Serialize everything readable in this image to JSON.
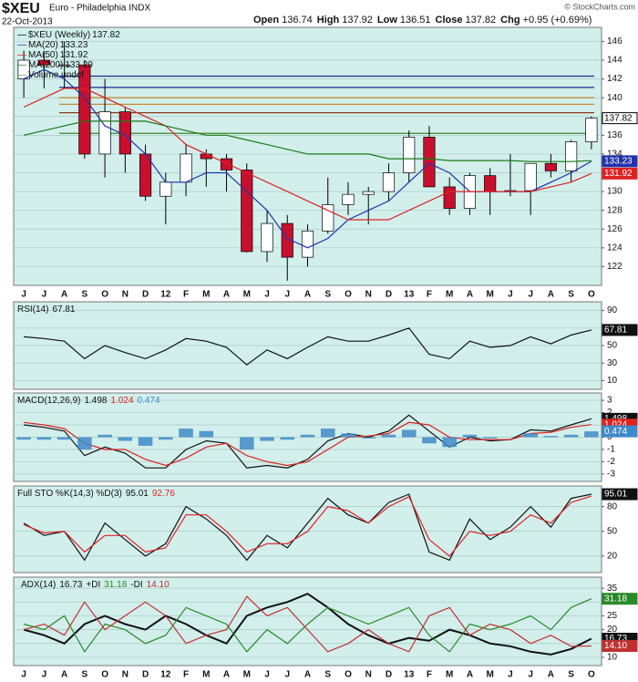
{
  "header": {
    "symbol": "$XEU",
    "name": "Euro - Philadelphia INDX",
    "date": "22-Oct-2013",
    "source": "© StockCharts.com",
    "quote": [
      {
        "label": "Open",
        "value": 136.74
      },
      {
        "label": "High",
        "value": 137.92
      },
      {
        "label": "Low",
        "value": 136.51
      },
      {
        "label": "Close",
        "value": 137.82
      },
      {
        "label": "Chg",
        "value": "+0.95 (+0.69%)"
      }
    ]
  },
  "chart_data": [
    {
      "type": "candlestick",
      "name": "$XEU (Weekly)",
      "note": "Volume undef",
      "tag": true,
      "categories": [
        "J",
        "J",
        "A",
        "S",
        "O",
        "N",
        "D",
        "12",
        "F",
        "M",
        "A",
        "M",
        "J",
        "J",
        "A",
        "S",
        "O",
        "N",
        "D",
        "13",
        "F",
        "M",
        "A",
        "M",
        "J",
        "J",
        "A",
        "S",
        "O"
      ],
      "open": [
        142,
        144,
        143.5,
        143.5,
        134,
        138.5,
        134,
        129.5,
        131,
        134,
        133.5,
        132.3,
        123.6,
        126.6,
        123,
        125.8,
        128.6,
        129.7,
        130,
        132,
        135.8,
        130.5,
        128.2,
        131.7,
        130,
        130.1,
        133,
        132.2,
        135.3
      ],
      "high": [
        145,
        145,
        146,
        144,
        142,
        139,
        135,
        132,
        135,
        134.5,
        134,
        133,
        128,
        127.5,
        126.5,
        131.5,
        131,
        130.5,
        133,
        136.5,
        137,
        131.5,
        132,
        132.5,
        134,
        133,
        134,
        135.5,
        138
      ],
      "low": [
        140,
        141,
        141,
        133.5,
        131.5,
        132,
        129,
        126.5,
        129.5,
        130.5,
        130,
        123.5,
        122.5,
        120.5,
        122,
        125.5,
        127.5,
        126.5,
        129,
        131,
        130.5,
        127.5,
        127.5,
        127.5,
        129.5,
        127.5,
        131.5,
        131,
        134.5
      ],
      "close": [
        144,
        143.5,
        143.5,
        134,
        138.5,
        134,
        129.5,
        131,
        134,
        133.5,
        132.3,
        123.6,
        126.6,
        123,
        125.8,
        128.6,
        129.7,
        130,
        132,
        135.8,
        130.5,
        128.2,
        131.7,
        130,
        130.1,
        133,
        132.2,
        135.3,
        137.82
      ],
      "up_color": "#ffffff",
      "down_color": "#c8102e",
      "series": [
        {
          "name": "MA(20)",
          "color": "#2233aa",
          "tag": true,
          "values": [
            142,
            143,
            142,
            140,
            137,
            136,
            134,
            131,
            131,
            132,
            132,
            130,
            128,
            125,
            124,
            125,
            127,
            128,
            129,
            131,
            133,
            132,
            130,
            130,
            130,
            130,
            131,
            132,
            133.23
          ]
        },
        {
          "name": "MA(50)",
          "color": "#dd2222",
          "tag": true,
          "values": [
            139,
            140,
            141,
            141,
            140,
            139,
            138,
            137,
            135,
            134,
            133,
            132,
            131,
            130,
            129,
            128,
            127,
            127,
            127,
            128,
            129,
            130,
            130,
            130,
            130,
            130,
            130.5,
            131,
            131.92
          ]
        },
        {
          "name": "MA(200)",
          "color": "#1a7a1a",
          "values": [
            136,
            136.5,
            137,
            137.5,
            137.5,
            137.5,
            137.5,
            137,
            136.5,
            136,
            136,
            135.5,
            135,
            134.5,
            134,
            134,
            134,
            134,
            133.5,
            133.5,
            133.5,
            133.3,
            133.3,
            133.3,
            133.3,
            133.2,
            133.2,
            133.2,
            133.29
          ]
        }
      ],
      "reference_lines": [
        {
          "value": 142.3,
          "color": "#1c2a8c"
        },
        {
          "value": 141.1,
          "color": "#1c2a8c"
        },
        {
          "value": 140,
          "color": "#c58a3a"
        },
        {
          "value": 139.3,
          "color": "#c58a3a"
        },
        {
          "value": 138.4,
          "color": "#8b3a1a"
        },
        {
          "value": 136.2,
          "color": "#3a8a2a"
        }
      ],
      "ylim": [
        120,
        147.5
      ],
      "yticks": [
        122,
        124,
        126,
        128,
        130,
        132,
        134,
        136,
        138,
        140,
        142,
        144,
        146
      ],
      "grid": true
    },
    {
      "type": "line",
      "title": "RSI(14)",
      "ylim": [
        0,
        100
      ],
      "yticks": [
        10,
        30,
        50,
        70,
        90
      ],
      "grid": true,
      "series": [
        {
          "color": "#111111",
          "tag": true,
          "values": [
            60,
            58,
            55,
            35,
            50,
            42,
            35,
            45,
            58,
            55,
            48,
            28,
            45,
            35,
            48,
            60,
            55,
            55,
            62,
            70,
            40,
            35,
            55,
            48,
            50,
            60,
            52,
            62,
            67.81
          ]
        }
      ]
    },
    {
      "type": "line",
      "title": "MACD(12,26,9)",
      "ylim": [
        -3.6,
        3.6
      ],
      "yticks": [
        -3,
        -2,
        -1,
        0,
        1,
        2,
        3
      ],
      "grid": true,
      "series": [
        {
          "color": "#111111",
          "tag": true,
          "values": [
            1,
            0.8,
            0.5,
            -1.5,
            -0.8,
            -1.3,
            -2.5,
            -2.5,
            -1,
            -0.3,
            -0.5,
            -2.5,
            -2.3,
            -2.5,
            -1.8,
            -0.3,
            0.3,
            0,
            0.5,
            1.8,
            0.5,
            -0.8,
            0,
            -0.3,
            -0.2,
            0.6,
            0.5,
            1,
            1.498
          ]
        },
        {
          "color": "#dd2222",
          "tag": true,
          "values": [
            1.2,
            1,
            0.7,
            -0.5,
            -1,
            -1,
            -1.8,
            -2.3,
            -1.7,
            -0.8,
            -0.5,
            -1.5,
            -2,
            -2.3,
            -2,
            -1,
            0,
            0.1,
            0.3,
            1.2,
            1,
            0,
            -0.2,
            -0.2,
            -0.2,
            0.3,
            0.4,
            0.8,
            1.024
          ]
        },
        {
          "color": "#3f8ac8",
          "kind": "bar",
          "tag": true,
          "values": [
            -0.2,
            -0.2,
            -0.2,
            -1,
            0.2,
            -0.3,
            -0.7,
            -0.2,
            0.7,
            0.5,
            0,
            -1,
            -0.3,
            -0.2,
            0.2,
            0.7,
            0.3,
            -0.1,
            0.2,
            0.6,
            -0.5,
            -0.8,
            0.2,
            -0.1,
            0,
            0.3,
            0.1,
            0.2,
            0.474
          ]
        }
      ]
    },
    {
      "type": "line",
      "title": "Full STO %K(14,3) %D(3)",
      "ylim": [
        0,
        105
      ],
      "yticks": [
        20,
        50,
        80
      ],
      "grid": true,
      "series": [
        {
          "color": "#111111",
          "tag": true,
          "values": [
            60,
            45,
            50,
            15,
            60,
            40,
            20,
            35,
            80,
            65,
            45,
            15,
            45,
            30,
            60,
            90,
            70,
            60,
            85,
            95,
            25,
            15,
            65,
            40,
            55,
            80,
            55,
            90,
            95.01
          ]
        },
        {
          "color": "#dd2222",
          "values": [
            58,
            48,
            50,
            25,
            45,
            45,
            25,
            30,
            70,
            70,
            50,
            25,
            35,
            35,
            50,
            80,
            75,
            60,
            80,
            92,
            40,
            20,
            50,
            45,
            50,
            70,
            60,
            85,
            92.76
          ]
        }
      ]
    },
    {
      "type": "line",
      "ylim": [
        7,
        39
      ],
      "yticks": [
        10,
        15,
        20,
        25,
        30,
        35
      ],
      "grid": true,
      "categories": [
        "J",
        "J",
        "A",
        "S",
        "O",
        "N",
        "D",
        "12",
        "F",
        "M",
        "A",
        "M",
        "J",
        "J",
        "A",
        "S",
        "O",
        "N",
        "D",
        "13",
        "F",
        "M",
        "A",
        "M",
        "J",
        "J",
        "A",
        "S",
        "O"
      ],
      "series": [
        {
          "name": "ADX(14)",
          "color": "#111111",
          "width": 2,
          "tag": true,
          "values": [
            20,
            18,
            15,
            22,
            25,
            22,
            20,
            25,
            22,
            18,
            15,
            25,
            28,
            30,
            33,
            28,
            22,
            18,
            15,
            17,
            16,
            20,
            18,
            15,
            14,
            12,
            11,
            13,
            16.73
          ]
        },
        {
          "name": "+DI",
          "color": "#2a8a2a",
          "tag": true,
          "values": [
            22,
            20,
            25,
            12,
            22,
            20,
            15,
            18,
            28,
            25,
            22,
            12,
            20,
            15,
            22,
            28,
            25,
            22,
            25,
            28,
            18,
            12,
            22,
            20,
            22,
            25,
            20,
            28,
            31.18
          ]
        },
        {
          "name": "-DI",
          "color": "#c03030",
          "tag": true,
          "values": [
            20,
            22,
            18,
            30,
            20,
            25,
            30,
            25,
            15,
            18,
            20,
            32,
            25,
            28,
            20,
            12,
            15,
            20,
            15,
            12,
            25,
            28,
            18,
            22,
            20,
            15,
            18,
            14,
            14.1
          ],
          "value_labels": [
            null,
            null,
            null,
            null,
            null,
            null,
            null,
            null,
            null,
            null,
            null,
            null,
            null,
            null,
            null,
            null,
            null,
            null,
            null,
            null,
            null,
            null,
            null,
            null,
            null,
            null,
            null,
            null,
            "14.10"
          ]
        }
      ]
    }
  ]
}
